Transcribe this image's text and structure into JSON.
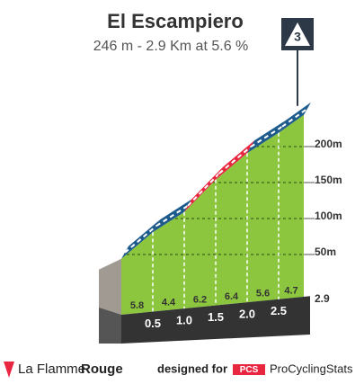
{
  "chart_data": {
    "type": "climb-profile",
    "title": "El Escampiero",
    "subtitle": "246 m - 2.9 Km at 5.6 %",
    "category": "3",
    "x": [
      0,
      0.5,
      1.0,
      1.5,
      2.0,
      2.5,
      2.9
    ],
    "elevation": [
      44,
      81,
      109,
      154,
      191,
      219,
      244
    ],
    "gradients": [
      5.8,
      4.4,
      6.2,
      6.4,
      5.6,
      4.7
    ],
    "segment_colors": [
      "#1d5b8c",
      "#1d5b8c",
      "#e8263f",
      "#e8263f",
      "#1d5b8c",
      "#1d5b8c"
    ],
    "fill_color": "#8cc63f",
    "xlim": [
      0,
      2.9
    ],
    "xticks": [
      {
        "value": 0.5,
        "label": "0.5"
      },
      {
        "value": 1,
        "label": "1.0"
      },
      {
        "value": 1.5,
        "label": "1.5"
      },
      {
        "value": 2,
        "label": "2.0"
      },
      {
        "value": 2.5,
        "label": "2.5"
      }
    ],
    "ylim": [
      0,
      250
    ],
    "yticks": [
      {
        "value": 50,
        "label": "50m"
      },
      {
        "value": 100,
        "label": "100m"
      },
      {
        "value": 150,
        "label": "150m"
      },
      {
        "value": 200,
        "label": "200m"
      }
    ],
    "grid": true
  },
  "footer": {
    "brand_a": "La Flamme",
    "brand_b": "Rouge",
    "designed_for": "designed for",
    "pcs": "PCS",
    "site": "ProCyclingStats"
  }
}
